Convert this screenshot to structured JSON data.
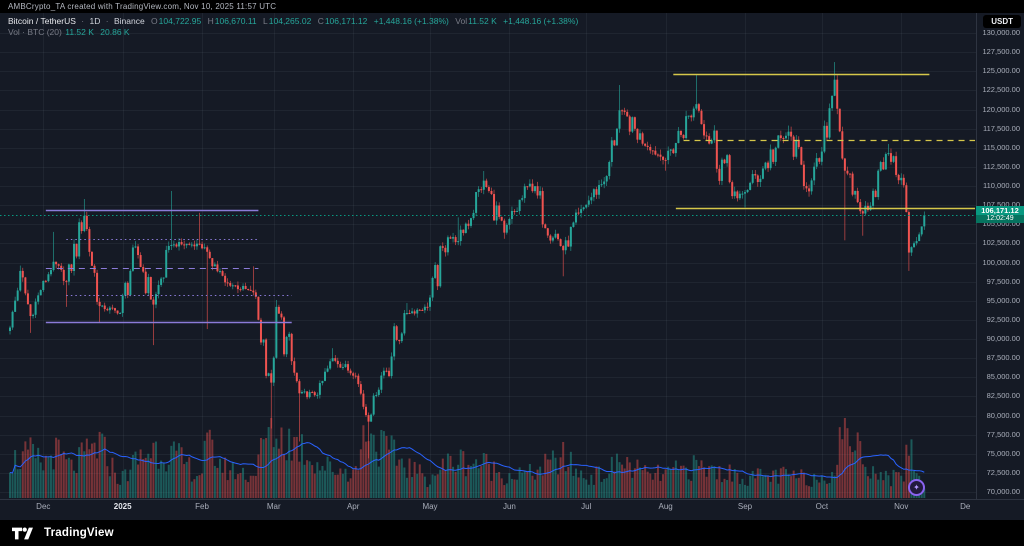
{
  "attribution": "AMBCrypto_TA created with TradingView.com, Nov 10, 2025 11:57 UTC",
  "legend": {
    "symbol": "Bitcoin / TetherUS",
    "separator": "·",
    "interval": "1D",
    "exchange": "Binance",
    "ohlc": [
      {
        "k": "O",
        "v": "104,722.95"
      },
      {
        "k": "H",
        "v": "106,670.11"
      },
      {
        "k": "L",
        "v": "104,265.02"
      },
      {
        "k": "C",
        "v": "106,171.12"
      }
    ],
    "change": "+1,448.16 (+1.38%)",
    "vol_label": "Vol",
    "vol_value": "11.52 K",
    "change_repeat": "+1,448.16 (+1.38%)",
    "indicator_label": "Vol · BTC (20)",
    "indicator_vol": "11.52 K",
    "indicator_ma": "20.86 K"
  },
  "price_scale": {
    "currency": "USDT",
    "ticks": [
      "130,000.00",
      "127,500.00",
      "125,000.00",
      "122,500.00",
      "120,000.00",
      "117,500.00",
      "115,000.00",
      "112,500.00",
      "110,000.00",
      "107,500.00",
      "105,000.00",
      "102,500.00",
      "100,000.00",
      "97,500.00",
      "95,000.00",
      "92,500.00",
      "90,000.00",
      "87,500.00",
      "85,000.00",
      "82,500.00",
      "80,000.00",
      "77,500.00",
      "75,000.00",
      "72,500.00",
      "70,000.00"
    ]
  },
  "price_badge": {
    "price": "106,171.12",
    "countdown": "12:02:49"
  },
  "time_axis": {
    "months": [
      {
        "label": "Dec",
        "day": 13
      },
      {
        "label": "2025",
        "day": 44,
        "emph": true
      },
      {
        "label": "Feb",
        "day": 75
      },
      {
        "label": "Mar",
        "day": 103
      },
      {
        "label": "Apr",
        "day": 134
      },
      {
        "label": "May",
        "day": 164
      },
      {
        "label": "Jun",
        "day": 195
      },
      {
        "label": "Jul",
        "day": 225
      },
      {
        "label": "Aug",
        "day": 256
      },
      {
        "label": "Sep",
        "day": 287
      },
      {
        "label": "Oct",
        "day": 317
      },
      {
        "label": "Nov",
        "day": 348
      },
      {
        "label": "De",
        "day": 373
      }
    ]
  },
  "footer": {
    "logo_text": "TradingView"
  },
  "sticker_glyph": "✦",
  "colors": {
    "bg": "#151a25",
    "up": "#26a69a",
    "down": "#ef5350",
    "vol_up": "rgba(38,166,154,0.45)",
    "vol_down": "rgba(239,83,80,0.45)",
    "vol_ma": "#2962ff",
    "grid": "rgba(170,180,200,0.07)",
    "purple": "#8b7bd8",
    "yellow": "#d6c74a",
    "badge": "#089981"
  },
  "chart_data": {
    "type": "candlestick",
    "title": "Bitcoin / TetherUS · 1D · Binance",
    "x_unit": "day index, day 0 = Nov 18 2024, last day = Nov 10 2025",
    "days": 358,
    "price_axis": {
      "min": 70000,
      "max": 130000,
      "tick_step": 2500
    },
    "volume_unit": "K BTC",
    "last_candle": {
      "o": 104722.95,
      "h": 106670.11,
      "l": 104265.02,
      "c": 106171.12,
      "volume_k": 11.52,
      "vol_ma_k": 20.86
    },
    "month_grid_days": [
      13,
      44,
      75,
      103,
      134,
      164,
      195,
      225,
      256,
      287,
      317,
      348,
      378
    ],
    "anchors": [
      [
        0,
        91500,
        null,
        null
      ],
      [
        4,
        98900,
        99600,
        null
      ],
      [
        8,
        93000,
        null,
        90800
      ],
      [
        12,
        96400,
        null,
        null
      ],
      [
        17,
        100100,
        104000,
        null
      ],
      [
        22,
        97500,
        null,
        94200
      ],
      [
        29,
        106100,
        108300,
        null
      ],
      [
        35,
        94300,
        null,
        92100
      ],
      [
        43,
        93400,
        null,
        null
      ],
      [
        49,
        102100,
        102800,
        null
      ],
      [
        56,
        94500,
        null,
        89200
      ],
      [
        63,
        102300,
        109350,
        null
      ],
      [
        74,
        102400,
        106500,
        null
      ],
      [
        77,
        101400,
        null,
        91300
      ],
      [
        84,
        97400,
        null,
        null
      ],
      [
        95,
        96100,
        99500,
        null
      ],
      [
        102,
        84300,
        null,
        78300
      ],
      [
        104,
        94200,
        95100,
        null
      ],
      [
        113,
        82900,
        null,
        76600
      ],
      [
        120,
        82700,
        null,
        null
      ],
      [
        126,
        87500,
        88800,
        null
      ],
      [
        135,
        85200,
        null,
        null
      ],
      [
        140,
        79200,
        null,
        74400
      ],
      [
        142,
        82600,
        null,
        null
      ],
      [
        155,
        93400,
        94700,
        null
      ],
      [
        163,
        94200,
        null,
        null
      ],
      [
        171,
        103300,
        null,
        null
      ],
      [
        175,
        102800,
        105900,
        null
      ],
      [
        185,
        110700,
        111960,
        null
      ],
      [
        193,
        103900,
        null,
        103100
      ],
      [
        203,
        110300,
        110700,
        null
      ],
      [
        216,
        101600,
        null,
        98200
      ],
      [
        224,
        107200,
        null,
        null
      ],
      [
        233,
        111300,
        null,
        null
      ],
      [
        238,
        119900,
        123200,
        null
      ],
      [
        249,
        115100,
        null,
        null
      ],
      [
        256,
        113400,
        null,
        112000
      ],
      [
        268,
        120700,
        124500,
        null
      ],
      [
        284,
        108400,
        null,
        null
      ],
      [
        287,
        109200,
        null,
        107200
      ],
      [
        304,
        117100,
        117900,
        null
      ],
      [
        312,
        109300,
        null,
        108600
      ],
      [
        317,
        114500,
        null,
        null
      ],
      [
        322,
        123900,
        126200,
        null
      ],
      [
        326,
        112000,
        null,
        102900
      ],
      [
        333,
        106400,
        null,
        103500
      ],
      [
        343,
        114300,
        115500,
        null
      ],
      [
        349,
        110100,
        null,
        null
      ],
      [
        351,
        101300,
        null,
        98900
      ],
      [
        354,
        102800,
        null,
        null
      ],
      [
        357,
        106171.12,
        106670.11,
        104265.02
      ]
    ],
    "volume_anchors": [
      [
        0,
        42
      ],
      [
        8,
        50
      ],
      [
        13,
        38
      ],
      [
        17,
        55
      ],
      [
        24,
        35
      ],
      [
        29,
        48
      ],
      [
        35,
        62
      ],
      [
        43,
        20
      ],
      [
        49,
        42
      ],
      [
        56,
        58
      ],
      [
        63,
        52
      ],
      [
        74,
        26
      ],
      [
        77,
        60
      ],
      [
        84,
        34
      ],
      [
        95,
        26
      ],
      [
        102,
        88
      ],
      [
        104,
        72
      ],
      [
        113,
        62
      ],
      [
        120,
        40
      ],
      [
        126,
        34
      ],
      [
        135,
        30
      ],
      [
        140,
        96
      ],
      [
        142,
        66
      ],
      [
        155,
        38
      ],
      [
        163,
        22
      ],
      [
        171,
        40
      ],
      [
        175,
        44
      ],
      [
        185,
        40
      ],
      [
        193,
        26
      ],
      [
        203,
        28
      ],
      [
        216,
        46
      ],
      [
        224,
        24
      ],
      [
        233,
        28
      ],
      [
        238,
        44
      ],
      [
        249,
        26
      ],
      [
        256,
        28
      ],
      [
        268,
        36
      ],
      [
        284,
        26
      ],
      [
        287,
        24
      ],
      [
        304,
        26
      ],
      [
        312,
        22
      ],
      [
        317,
        24
      ],
      [
        322,
        34
      ],
      [
        326,
        92
      ],
      [
        333,
        44
      ],
      [
        343,
        22
      ],
      [
        349,
        28
      ],
      [
        351,
        72
      ],
      [
        354,
        26
      ],
      [
        357,
        11.52
      ]
    ],
    "drawings": {
      "purple_lines": [
        {
          "price": 106800,
          "d1": 14,
          "d2": 97,
          "style": "solid"
        },
        {
          "price": 92200,
          "d1": 14,
          "d2": 110,
          "style": "solid"
        },
        {
          "price": 99300,
          "d1": 14,
          "d2": 97,
          "style": "dashed"
        },
        {
          "price": 103100,
          "d1": 22,
          "d2": 97,
          "style": "dotted"
        },
        {
          "price": 95800,
          "d1": 22,
          "d2": 110,
          "style": "dotted"
        }
      ],
      "yellow_lines": [
        {
          "price": 124700,
          "d1": 259,
          "d2": 359,
          "style": "solid"
        },
        {
          "price": 107100,
          "d1": 260,
          "d2": 377,
          "style": "solid"
        },
        {
          "price": 116000,
          "d1": 263,
          "d2": 377,
          "style": "dashed"
        }
      ]
    }
  }
}
